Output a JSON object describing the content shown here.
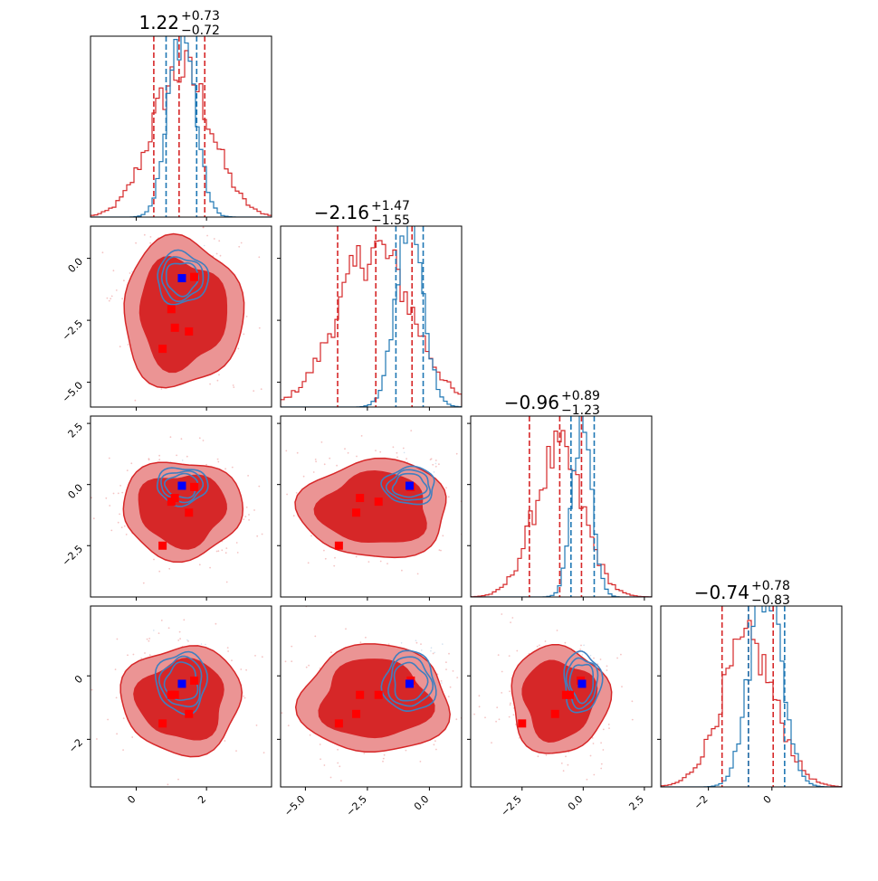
{
  "colors": {
    "red": "#d62728",
    "blue": "#1f77b4",
    "red_fill": "#d62728",
    "red_light": "#eb9494",
    "marker_blue": "#0000ff",
    "marker_red": "#ff0000"
  },
  "chart_data": {
    "type": "corner",
    "parameters": [
      {
        "index": 0,
        "title_main": "1.22",
        "title_sup": "+0.73",
        "title_sub": "−0.72",
        "range": [
          -1.3,
          3.85
        ],
        "ticks": [
          "0",
          "2"
        ],
        "tick_values": [
          0,
          2
        ],
        "red_quantiles": [
          0.5,
          1.22,
          1.95
        ],
        "blue_quantiles": [
          0.85,
          1.72
        ],
        "hist_red_mean": 1.3,
        "hist_red_sd": 0.85,
        "hist_blue_mean": 1.3,
        "hist_blue_sd": 0.38
      },
      {
        "index": 1,
        "title_main": "−2.16",
        "title_sup": "+1.47",
        "title_sub": "−1.55",
        "range": [
          -6.0,
          1.3
        ],
        "ticks": [
          "−5.0",
          "−2.5",
          "0.0"
        ],
        "tick_values": [
          -5.0,
          -2.5,
          0.0
        ],
        "red_quantiles": [
          -3.7,
          -2.16,
          -0.7
        ],
        "blue_quantiles": [
          -1.35,
          -0.25
        ],
        "hist_red_mean": -2.2,
        "hist_red_sd": 1.5,
        "hist_blue_mean": -0.8,
        "hist_blue_sd": 0.55
      },
      {
        "index": 2,
        "title_main": "−0.96",
        "title_sup": "+0.89",
        "title_sub": "−1.23",
        "range": [
          -4.6,
          2.8
        ],
        "ticks": [
          "−2.5",
          "0.0",
          "2.5"
        ],
        "tick_values": [
          -2.5,
          0.0,
          2.5
        ],
        "red_quantiles": [
          -2.2,
          -0.96,
          -0.07
        ],
        "blue_quantiles": [
          -0.5,
          0.45
        ],
        "hist_red_mean": -1.0,
        "hist_red_sd": 1.0,
        "hist_blue_mean": -0.05,
        "hist_blue_sd": 0.4
      },
      {
        "index": 3,
        "title_main": "−0.74",
        "title_sup": "+0.78",
        "title_sub": "−0.83",
        "range": [
          -3.5,
          2.2
        ],
        "ticks": [
          "−2",
          "0"
        ],
        "tick_values": [
          -2,
          0
        ],
        "red_quantiles": [
          -1.57,
          -0.74,
          0.04
        ],
        "blue_quantiles": [
          -0.74,
          0.4
        ],
        "hist_red_mean": -0.75,
        "hist_red_sd": 0.85,
        "hist_blue_mean": -0.2,
        "hist_blue_sd": 0.5
      }
    ],
    "row_tick_labels": {
      "1": [
        "0.0",
        "−2.5",
        "−5.0"
      ],
      "2": [
        "2.5",
        "0.0",
        "−2.5"
      ],
      "3": [
        "0",
        "−2"
      ]
    },
    "blue_marker": [
      1.3,
      -0.8,
      -0.05,
      -0.25
    ],
    "red_markers": [
      [
        0.75,
        -3.65,
        -2.5,
        -1.5
      ],
      [
        1.0,
        -2.05,
        -0.7,
        -0.6
      ],
      [
        1.5,
        -2.95,
        -1.15,
        -1.2
      ],
      [
        1.65,
        -0.75,
        -0.1,
        -0.15
      ],
      [
        1.1,
        -2.8,
        -0.55,
        -0.6
      ]
    ]
  }
}
